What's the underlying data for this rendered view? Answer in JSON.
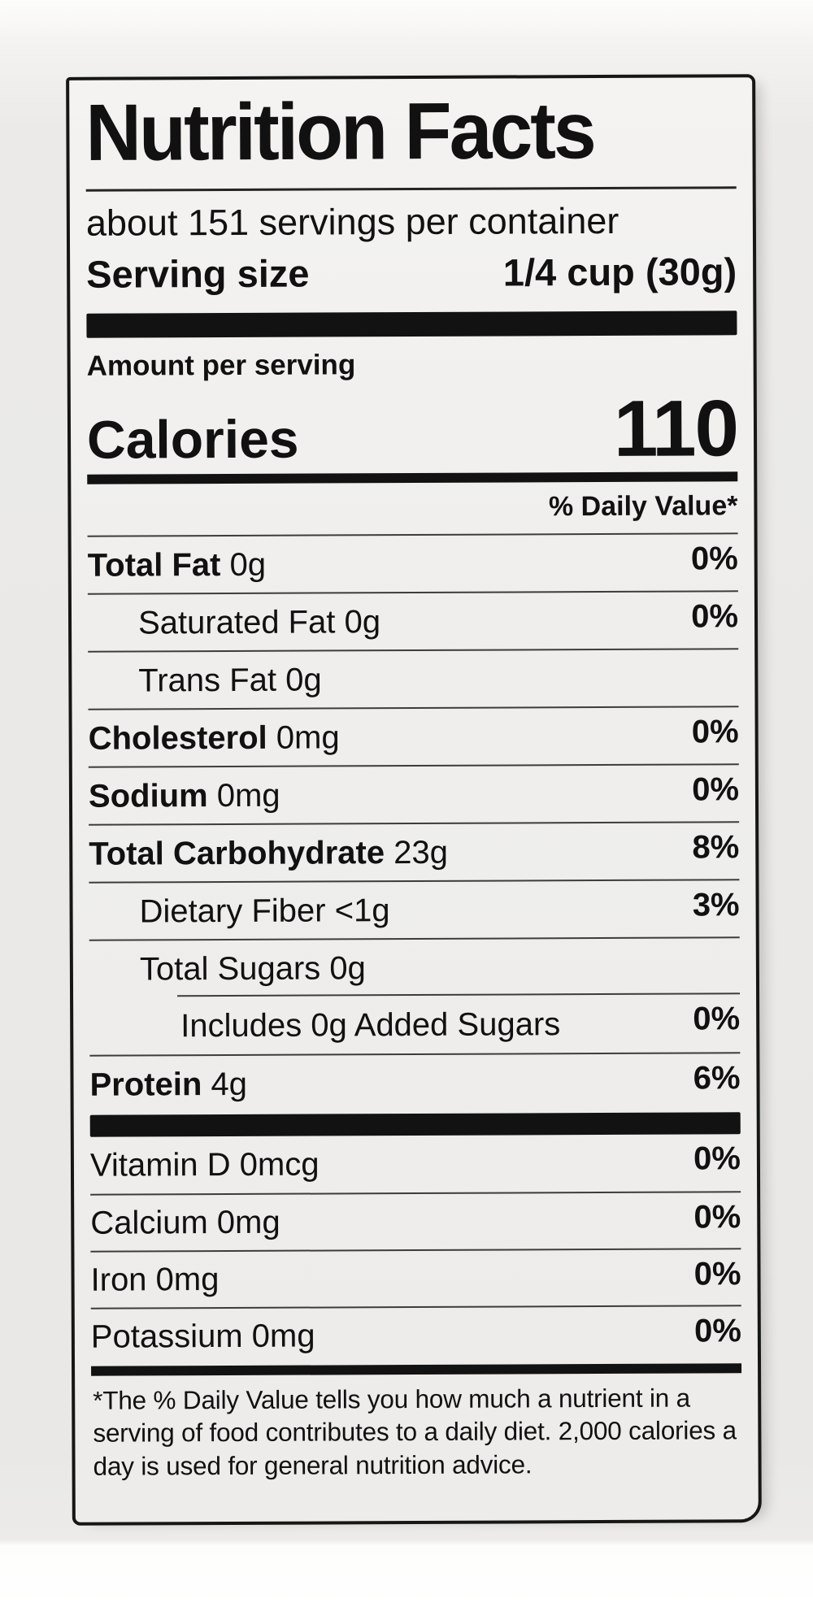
{
  "colors": {
    "text": "#111111",
    "thick_rule": "#121212",
    "hairline": "#3c3c3c",
    "label_background": "#f0efed",
    "page_background": "#e9e8e6"
  },
  "label": {
    "title": "Nutrition Facts",
    "servings_per_container": "about 151 servings per container",
    "serving_size": {
      "label": "Serving size",
      "value": "1/4 cup (30g)"
    },
    "amount_per_serving": "Amount per serving",
    "calories": {
      "label": "Calories",
      "value": "110"
    },
    "daily_value_header": "% Daily Value*",
    "nutrients": [
      {
        "name": "Total Fat",
        "amount": "0g",
        "dv": "0%",
        "indent": 0,
        "bold": true
      },
      {
        "name": "Saturated Fat",
        "amount": "0g",
        "dv": "0%",
        "indent": 1,
        "bold": false
      },
      {
        "name": "Trans Fat",
        "amount": "0g",
        "dv": "",
        "indent": 1,
        "bold": false
      },
      {
        "name": "Cholesterol",
        "amount": "0mg",
        "dv": "0%",
        "indent": 0,
        "bold": true
      },
      {
        "name": "Sodium",
        "amount": "0mg",
        "dv": "0%",
        "indent": 0,
        "bold": true
      },
      {
        "name": "Total Carbohydrate",
        "amount": "23g",
        "dv": "8%",
        "indent": 0,
        "bold": true
      },
      {
        "name": "Dietary Fiber",
        "amount": "<1g",
        "dv": "3%",
        "indent": 1,
        "bold": false
      },
      {
        "name": "Total Sugars",
        "amount": "0g",
        "dv": "",
        "indent": 1,
        "bold": false
      },
      {
        "name": "Includes 0g Added Sugars",
        "amount": "",
        "dv": "0%",
        "indent": 2,
        "bold": false,
        "partial_rule": true
      },
      {
        "name": "Protein",
        "amount": "4g",
        "dv": "6%",
        "indent": 0,
        "bold": true
      }
    ],
    "micronutrients": [
      {
        "name": "Vitamin D",
        "amount": "0mcg",
        "dv": "0%"
      },
      {
        "name": "Calcium",
        "amount": "0mg",
        "dv": "0%"
      },
      {
        "name": "Iron",
        "amount": "0mg",
        "dv": "0%"
      },
      {
        "name": "Potassium",
        "amount": "0mg",
        "dv": "0%"
      }
    ],
    "footnote": "*The % Daily Value tells you how much a nutrient in a serving of food contributes to a daily diet. 2,000 calories a day is used for general nutrition advice."
  }
}
